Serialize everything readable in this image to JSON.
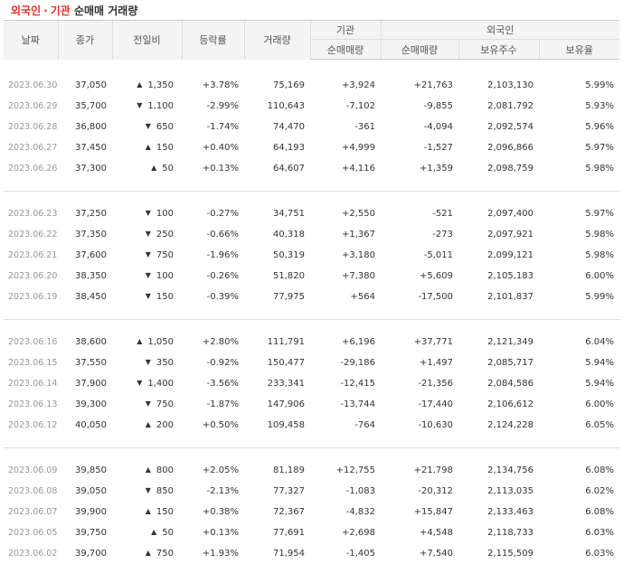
{
  "title": {
    "part1": "외국인",
    "dot": "·",
    "part2": "기관",
    "part3": "순매매 거래량"
  },
  "headers": {
    "date": "날짜",
    "close": "종가",
    "change": "전일비",
    "rate": "등락률",
    "volume": "거래량",
    "institution": "기관",
    "inst_net": "순매매량",
    "foreign": "외국인",
    "foreign_net": "순매매량",
    "foreign_holding": "보유주수",
    "foreign_ratio": "보유율"
  },
  "colors": {
    "up": "#e4322a",
    "down": "#1b61d1"
  },
  "groups": [
    [
      {
        "date": "2023.06.30",
        "close": "37,050",
        "dir": "up",
        "change": "1,350",
        "rate": "+3.78%",
        "volume": "75,169",
        "inst": "+3,924",
        "foreign": "+21,763",
        "holding": "2,103,130",
        "ratio": "5.99%"
      },
      {
        "date": "2023.06.29",
        "close": "35,700",
        "dir": "down",
        "change": "1,100",
        "rate": "-2.99%",
        "volume": "110,643",
        "inst": "-7,102",
        "foreign": "-9,855",
        "holding": "2,081,792",
        "ratio": "5.93%"
      },
      {
        "date": "2023.06.28",
        "close": "36,800",
        "dir": "down",
        "change": "650",
        "rate": "-1.74%",
        "volume": "74,470",
        "inst": "-361",
        "foreign": "-4,094",
        "holding": "2,092,574",
        "ratio": "5.96%"
      },
      {
        "date": "2023.06.27",
        "close": "37,450",
        "dir": "up",
        "change": "150",
        "rate": "+0.40%",
        "volume": "64,193",
        "inst": "+4,999",
        "foreign": "-1,527",
        "holding": "2,096,866",
        "ratio": "5.97%"
      },
      {
        "date": "2023.06.26",
        "close": "37,300",
        "dir": "up",
        "change": "50",
        "rate": "+0.13%",
        "volume": "64,607",
        "inst": "+4,116",
        "foreign": "+1,359",
        "holding": "2,098,759",
        "ratio": "5.98%"
      }
    ],
    [
      {
        "date": "2023.06.23",
        "close": "37,250",
        "dir": "down",
        "change": "100",
        "rate": "-0.27%",
        "volume": "34,751",
        "inst": "+2,550",
        "foreign": "-521",
        "holding": "2,097,400",
        "ratio": "5.97%"
      },
      {
        "date": "2023.06.22",
        "close": "37,350",
        "dir": "down",
        "change": "250",
        "rate": "-0.66%",
        "volume": "40,318",
        "inst": "+1,367",
        "foreign": "-273",
        "holding": "2,097,921",
        "ratio": "5.98%"
      },
      {
        "date": "2023.06.21",
        "close": "37,600",
        "dir": "down",
        "change": "750",
        "rate": "-1.96%",
        "volume": "50,319",
        "inst": "+3,180",
        "foreign": "-5,011",
        "holding": "2,099,121",
        "ratio": "5.98%"
      },
      {
        "date": "2023.06.20",
        "close": "38,350",
        "dir": "down",
        "change": "100",
        "rate": "-0.26%",
        "volume": "51,820",
        "inst": "+7,380",
        "foreign": "+5,609",
        "holding": "2,105,183",
        "ratio": "6.00%"
      },
      {
        "date": "2023.06.19",
        "close": "38,450",
        "dir": "down",
        "change": "150",
        "rate": "-0.39%",
        "volume": "77,975",
        "inst": "+564",
        "foreign": "-17,500",
        "holding": "2,101,837",
        "ratio": "5.99%"
      }
    ],
    [
      {
        "date": "2023.06.16",
        "close": "38,600",
        "dir": "up",
        "change": "1,050",
        "rate": "+2.80%",
        "volume": "111,791",
        "inst": "+6,196",
        "foreign": "+37,771",
        "holding": "2,121,349",
        "ratio": "6.04%"
      },
      {
        "date": "2023.06.15",
        "close": "37,550",
        "dir": "down",
        "change": "350",
        "rate": "-0.92%",
        "volume": "150,477",
        "inst": "-29,186",
        "foreign": "+1,497",
        "holding": "2,085,717",
        "ratio": "5.94%"
      },
      {
        "date": "2023.06.14",
        "close": "37,900",
        "dir": "down",
        "change": "1,400",
        "rate": "-3.56%",
        "volume": "233,341",
        "inst": "-12,415",
        "foreign": "-21,356",
        "holding": "2,084,586",
        "ratio": "5.94%"
      },
      {
        "date": "2023.06.13",
        "close": "39,300",
        "dir": "down",
        "change": "750",
        "rate": "-1.87%",
        "volume": "147,906",
        "inst": "-13,744",
        "foreign": "-17,440",
        "holding": "2,106,612",
        "ratio": "6.00%"
      },
      {
        "date": "2023.06.12",
        "close": "40,050",
        "dir": "up",
        "change": "200",
        "rate": "+0.50%",
        "volume": "109,458",
        "inst": "-764",
        "foreign": "-10,630",
        "holding": "2,124,228",
        "ratio": "6.05%"
      }
    ],
    [
      {
        "date": "2023.06.09",
        "close": "39,850",
        "dir": "up",
        "change": "800",
        "rate": "+2.05%",
        "volume": "81,189",
        "inst": "+12,755",
        "foreign": "+21,798",
        "holding": "2,134,756",
        "ratio": "6.08%"
      },
      {
        "date": "2023.06.08",
        "close": "39,050",
        "dir": "down",
        "change": "850",
        "rate": "-2.13%",
        "volume": "77,327",
        "inst": "-1,083",
        "foreign": "-20,312",
        "holding": "2,113,035",
        "ratio": "6.02%"
      },
      {
        "date": "2023.06.07",
        "close": "39,900",
        "dir": "up",
        "change": "150",
        "rate": "+0.38%",
        "volume": "72,367",
        "inst": "-4,832",
        "foreign": "+15,847",
        "holding": "2,133,463",
        "ratio": "6.08%"
      },
      {
        "date": "2023.06.05",
        "close": "39,750",
        "dir": "up",
        "change": "50",
        "rate": "+0.13%",
        "volume": "77,691",
        "inst": "+2,698",
        "foreign": "+4,548",
        "holding": "2,118,733",
        "ratio": "6.03%"
      },
      {
        "date": "2023.06.02",
        "close": "39,700",
        "dir": "up",
        "change": "750",
        "rate": "+1.93%",
        "volume": "71,954",
        "inst": "-1,405",
        "foreign": "+7,540",
        "holding": "2,115,509",
        "ratio": "6.03%"
      }
    ]
  ]
}
